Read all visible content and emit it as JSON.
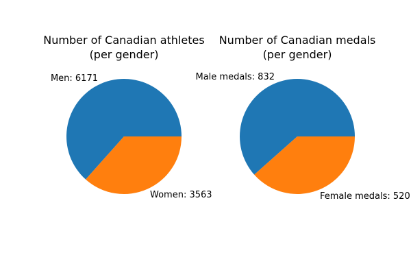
{
  "chart_data": [
    {
      "type": "pie",
      "title_line1": "Number of Canadian athletes",
      "title_line2": "(per gender)",
      "labels": [
        "Men: 6171",
        "Women: 3563"
      ],
      "values": [
        6171,
        3563
      ],
      "colors": [
        "#1f77b4",
        "#ff7f0e"
      ]
    },
    {
      "type": "pie",
      "title_line1": "Number of Canadian medals",
      "title_line2": "(per gender)",
      "labels": [
        "Male medals: 832",
        "Female medals: 520"
      ],
      "values": [
        832,
        520
      ],
      "colors": [
        "#1f77b4",
        "#ff7f0e"
      ]
    }
  ]
}
